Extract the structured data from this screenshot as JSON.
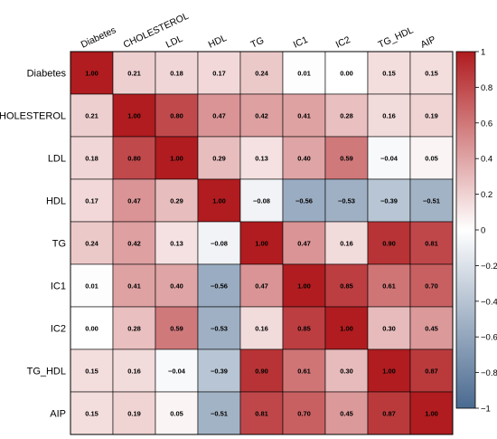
{
  "chart_data": {
    "type": "heatmap",
    "title": "",
    "variables": [
      "Diabetes",
      "CHOLESTEROL",
      "LDL",
      "HDL",
      "TG",
      "IC1",
      "IC2",
      "TG_HDL",
      "AIP"
    ],
    "matrix": [
      [
        1.0,
        0.21,
        0.18,
        0.17,
        0.24,
        0.01,
        0.0,
        0.15,
        0.15
      ],
      [
        0.21,
        1.0,
        0.8,
        0.47,
        0.42,
        0.41,
        0.28,
        0.16,
        0.19
      ],
      [
        0.18,
        0.8,
        1.0,
        0.29,
        0.13,
        0.4,
        0.59,
        -0.04,
        0.05
      ],
      [
        0.17,
        0.47,
        0.29,
        1.0,
        -0.08,
        -0.56,
        -0.53,
        -0.39,
        -0.51
      ],
      [
        0.24,
        0.42,
        0.13,
        -0.08,
        1.0,
        0.47,
        0.16,
        0.9,
        0.81
      ],
      [
        0.01,
        0.41,
        0.4,
        -0.56,
        0.47,
        1.0,
        0.85,
        0.61,
        0.7
      ],
      [
        0.0,
        0.28,
        0.59,
        -0.53,
        0.16,
        0.85,
        1.0,
        0.3,
        0.45
      ],
      [
        0.15,
        0.16,
        -0.04,
        -0.39,
        0.9,
        0.61,
        0.3,
        1.0,
        0.87
      ],
      [
        0.15,
        0.19,
        0.05,
        -0.51,
        0.81,
        0.7,
        0.45,
        0.87,
        1.0
      ]
    ],
    "value_labels_shown": true,
    "colorbar": {
      "range": [
        -1,
        1
      ],
      "ticks": [
        -1,
        -0.8,
        -0.6,
        -0.4,
        -0.2,
        0,
        0.2,
        0.4,
        0.6,
        0.8,
        1
      ],
      "tick_labels": [
        "−1",
        "−0.8",
        "−0.6",
        "−0.4",
        "−0.2",
        "0",
        "0.2",
        "0.4",
        "0.6",
        "0.8",
        "1"
      ],
      "position": "right",
      "colors": {
        "low": "#4a6a90",
        "mid": "#ffffff",
        "high": "#b01c1f"
      }
    }
  }
}
